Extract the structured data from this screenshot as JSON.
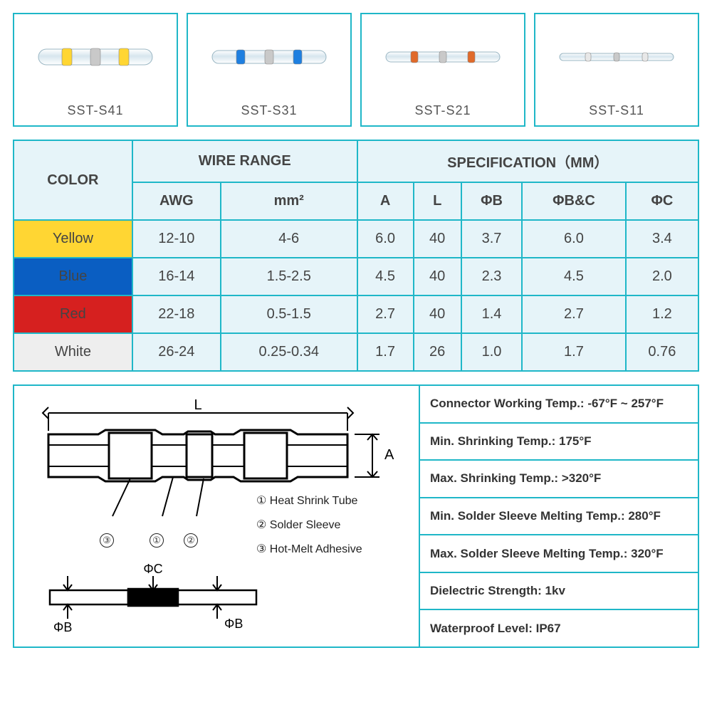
{
  "products": [
    {
      "label": "SST-S41",
      "band_color": "#ffd633",
      "tube_height": 22,
      "band_w": 14
    },
    {
      "label": "SST-S31",
      "band_color": "#1e7fe0",
      "tube_height": 18,
      "band_w": 12
    },
    {
      "label": "SST-S21",
      "band_color": "#e06a2a",
      "tube_height": 14,
      "band_w": 10
    },
    {
      "label": "SST-S11",
      "band_color": "#e8e8e8",
      "tube_height": 10,
      "band_w": 8
    }
  ],
  "table": {
    "header_color": "COLOR",
    "header_wire": "WIRE RANGE",
    "header_spec": "SPECIFICATION（MM）",
    "sub_headers": [
      "AWG",
      "mm²",
      "A",
      "L",
      "ΦB",
      "ΦB&C",
      "ΦC"
    ],
    "rows": [
      {
        "color_label": "Yellow",
        "color_class": "color-yellow",
        "cells": [
          "12-10",
          "4-6",
          "6.0",
          "40",
          "3.7",
          "6.0",
          "3.4"
        ]
      },
      {
        "color_label": "Blue",
        "color_class": "color-blue",
        "cells": [
          "16-14",
          "1.5-2.5",
          "4.5",
          "40",
          "2.3",
          "4.5",
          "2.0"
        ]
      },
      {
        "color_label": "Red",
        "color_class": "color-red",
        "cells": [
          "22-18",
          "0.5-1.5",
          "2.7",
          "40",
          "1.4",
          "2.7",
          "1.2"
        ]
      },
      {
        "color_label": "White",
        "color_class": "color-white",
        "cells": [
          "26-24",
          "0.25-0.34",
          "1.7",
          "26",
          "1.0",
          "1.7",
          "0.76"
        ]
      }
    ]
  },
  "diagram": {
    "L_label": "L",
    "A_label": "A",
    "phiB": "ΦB",
    "phiC": "ΦC",
    "legend": [
      {
        "n": "①",
        "text": "Heat Shrink Tube"
      },
      {
        "n": "②",
        "text": "Solder Sleeve"
      },
      {
        "n": "③",
        "text": "Hot-Melt Adhesive"
      }
    ],
    "callouts": [
      "③",
      "①",
      "②"
    ]
  },
  "properties": [
    "Connector Working Temp.:  -67°F ~ 257°F",
    "Min. Shrinking Temp.:  175°F",
    "Max. Shrinking Temp.:  >320°F",
    "Min. Solder Sleeve Melting Temp.:  280°F",
    "Max. Solder Sleeve Melting Temp.:  320°F",
    "Dielectric Strength: 1kv",
    "Waterproof Level: IP67"
  ],
  "colors": {
    "border": "#1fb7c8",
    "cell_bg": "#e6f4f9"
  }
}
